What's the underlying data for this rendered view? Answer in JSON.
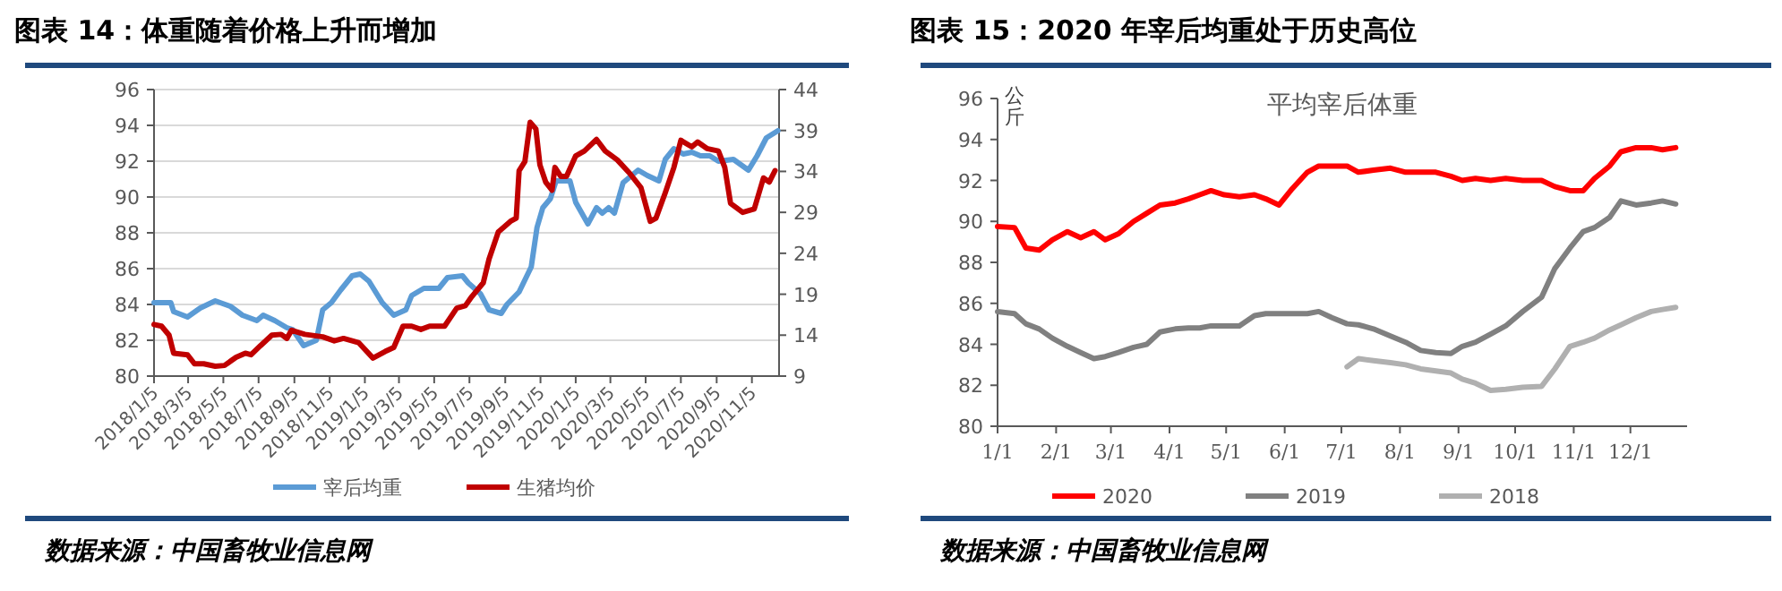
{
  "chart_data": [
    {
      "type": "line",
      "title": "图表 14：体重随着价格上升而增加",
      "annotations": [
        "数据来源：中国畜牧业信息网"
      ],
      "legend": "bottom",
      "grid": "y",
      "xlim": [
        "2018-01-05",
        "2020-12-22"
      ],
      "xticks": [
        {
          "value": "2018-01-05",
          "label": "2018/1/5"
        },
        {
          "value": "2018-03-05",
          "label": "2018/3/5"
        },
        {
          "value": "2018-05-05",
          "label": "2018/5/5"
        },
        {
          "value": "2018-07-05",
          "label": "2018/7/5"
        },
        {
          "value": "2018-09-05",
          "label": "2018/9/5"
        },
        {
          "value": "2018-11-05",
          "label": "2018/11/5"
        },
        {
          "value": "2019-01-05",
          "label": "2019/1/5"
        },
        {
          "value": "2019-03-05",
          "label": "2019/3/5"
        },
        {
          "value": "2019-05-05",
          "label": "2019/5/5"
        },
        {
          "value": "2019-07-05",
          "label": "2019/7/5"
        },
        {
          "value": "2019-09-05",
          "label": "2019/9/5"
        },
        {
          "value": "2019-11-05",
          "label": "2019/11/5"
        },
        {
          "value": "2020-01-05",
          "label": "2020/1/5"
        },
        {
          "value": "2020-03-05",
          "label": "2020/3/5"
        },
        {
          "value": "2020-05-05",
          "label": "2020/5/5"
        },
        {
          "value": "2020-07-05",
          "label": "2020/7/5"
        },
        {
          "value": "2020-09-05",
          "label": "2020/9/5"
        },
        {
          "value": "2020-11-05",
          "label": "2020/11/5"
        }
      ],
      "ylim": [
        80,
        96
      ],
      "yticks": [
        80,
        82,
        84,
        86,
        88,
        90,
        92,
        94,
        96
      ],
      "y2lim": [
        9,
        44
      ],
      "y2ticks": [
        9,
        14,
        19,
        24,
        29,
        34,
        39,
        44
      ],
      "series": [
        {
          "name": "宰后均重",
          "color": "#5b9bd5",
          "x": [
            "2018-01-05",
            "2018-02-03",
            "2018-02-08",
            "2018-03-04",
            "2018-03-26",
            "2018-04-21",
            "2018-05-17",
            "2018-06-07",
            "2018-07-02",
            "2018-07-13",
            "2018-08-02",
            "2018-08-23",
            "2018-09-02",
            "2018-09-21",
            "2018-10-13",
            "2018-10-24",
            "2018-11-08",
            "2018-11-24",
            "2018-12-14",
            "2018-12-28",
            "2019-01-12",
            "2019-02-04",
            "2019-02-24",
            "2019-03-17",
            "2019-03-27",
            "2019-04-17",
            "2019-05-13",
            "2019-05-28",
            "2019-06-23",
            "2019-07-03",
            "2019-07-24",
            "2019-08-08",
            "2019-08-29",
            "2019-09-08",
            "2019-09-29",
            "2019-10-20",
            "2019-10-30",
            "2019-11-09",
            "2019-11-22",
            "2019-12-02",
            "2019-12-26",
            "2020-01-05",
            "2020-01-26",
            "2020-02-10",
            "2020-02-20",
            "2020-03-02",
            "2020-03-12",
            "2020-03-27",
            "2020-04-22",
            "2020-05-08",
            "2020-05-28",
            "2020-06-08",
            "2020-06-23",
            "2020-07-09",
            "2020-07-24",
            "2020-08-08",
            "2020-08-24",
            "2020-09-08",
            "2020-10-04",
            "2020-10-30",
            "2020-11-14",
            "2020-11-30",
            "2020-12-20"
          ],
          "values": [
            84.1,
            84.1,
            83.6,
            83.3,
            83.8,
            84.2,
            83.9,
            83.4,
            83.1,
            83.4,
            83.1,
            82.7,
            82.6,
            81.7,
            82.0,
            83.7,
            84.1,
            84.8,
            85.6,
            85.7,
            85.3,
            84.1,
            83.4,
            83.7,
            84.5,
            84.9,
            84.9,
            85.5,
            85.6,
            85.2,
            84.6,
            83.7,
            83.5,
            84.0,
            84.7,
            86.1,
            88.3,
            89.4,
            89.9,
            90.9,
            90.9,
            89.7,
            88.5,
            89.4,
            89.1,
            89.4,
            89.1,
            90.8,
            91.5,
            91.2,
            90.9,
            92.1,
            92.7,
            92.4,
            92.5,
            92.3,
            92.3,
            92.0,
            92.1,
            91.5,
            92.3,
            93.3,
            93.7
          ]
        },
        {
          "name": "生猪均价",
          "color": "#c00000",
          "axis": "y2",
          "x": [
            "2018-01-05",
            "2018-01-18",
            "2018-01-31",
            "2018-02-08",
            "2018-03-04",
            "2018-03-16",
            "2018-04-01",
            "2018-04-21",
            "2018-05-07",
            "2018-05-27",
            "2018-06-12",
            "2018-06-22",
            "2018-07-08",
            "2018-07-28",
            "2018-08-13",
            "2018-08-23",
            "2018-08-31",
            "2018-09-23",
            "2018-10-24",
            "2018-11-13",
            "2018-11-29",
            "2018-12-25",
            "2019-01-19",
            "2019-02-09",
            "2019-02-24",
            "2019-03-12",
            "2019-03-27",
            "2019-04-12",
            "2019-04-27",
            "2019-05-23",
            "2019-06-13",
            "2019-06-28",
            "2019-07-09",
            "2019-07-29",
            "2019-08-08",
            "2019-08-24",
            "2019-09-14",
            "2019-09-24",
            "2019-09-29",
            "2019-10-09",
            "2019-10-18",
            "2019-10-28",
            "2019-11-04",
            "2019-11-14",
            "2019-11-25",
            "2019-11-30",
            "2019-12-10",
            "2019-12-20",
            "2020-01-05",
            "2020-01-20",
            "2020-02-10",
            "2020-02-25",
            "2020-03-17",
            "2020-04-07",
            "2020-04-27",
            "2020-05-13",
            "2020-05-23",
            "2020-06-08",
            "2020-06-23",
            "2020-07-05",
            "2020-07-24",
            "2020-08-03",
            "2020-08-19",
            "2020-09-08",
            "2020-09-19",
            "2020-09-29",
            "2020-10-20",
            "2020-11-09",
            "2020-11-25",
            "2020-12-05",
            "2020-12-15"
          ],
          "values": [
            15.3,
            15.1,
            14.0,
            11.8,
            11.6,
            10.5,
            10.5,
            10.2,
            10.3,
            11.3,
            11.8,
            11.6,
            12.7,
            14.0,
            14.1,
            13.6,
            14.6,
            14.1,
            13.8,
            13.3,
            13.6,
            13.1,
            11.2,
            12.0,
            12.5,
            15.1,
            15.1,
            14.7,
            15.1,
            15.1,
            17.3,
            17.6,
            18.7,
            20.4,
            23.3,
            26.6,
            27.9,
            28.3,
            34.1,
            35.2,
            40.0,
            39.2,
            34.8,
            32.7,
            31.7,
            34.5,
            33.4,
            33.4,
            35.9,
            36.5,
            37.9,
            36.5,
            35.4,
            33.8,
            32.0,
            27.9,
            28.3,
            31.4,
            34.5,
            37.8,
            37.0,
            37.6,
            36.8,
            36.5,
            34.5,
            30.1,
            29.0,
            29.4,
            33.2,
            32.7,
            34.1
          ]
        }
      ]
    },
    {
      "type": "line",
      "title": "图表 15：2020 年宰后均重处于历史高位",
      "subtitle": "平均宰后体重",
      "ylabel": "公斤",
      "annotations": [
        "数据来源：中国畜牧业信息网"
      ],
      "legend": "bottom",
      "xlim": [
        "--01-01",
        "--12-31"
      ],
      "xticks": [
        {
          "value": "--01-01",
          "label": "1/1"
        },
        {
          "value": "--02-01",
          "label": "2/1"
        },
        {
          "value": "--03-01",
          "label": "3/1"
        },
        {
          "value": "--04-01",
          "label": "4/1"
        },
        {
          "value": "--05-01",
          "label": "5/1"
        },
        {
          "value": "--06-01",
          "label": "6/1"
        },
        {
          "value": "--07-01",
          "label": "7/1"
        },
        {
          "value": "--08-01",
          "label": "8/1"
        },
        {
          "value": "--09-01",
          "label": "9/1"
        },
        {
          "value": "--10-01",
          "label": "10/1"
        },
        {
          "value": "--11-01",
          "label": "11/1"
        },
        {
          "value": "--12-01",
          "label": "12/1"
        }
      ],
      "ylim": [
        80,
        96
      ],
      "yticks": [
        80,
        82,
        84,
        86,
        88,
        90,
        92,
        94,
        96
      ],
      "x": [
        "--01-01",
        "--01-10",
        "--01-16",
        "--01-23",
        "--01-30",
        "--02-07",
        "--02-14",
        "--02-21",
        "--02-27",
        "--03-05",
        "--03-13",
        "--03-20",
        "--03-27",
        "--04-04",
        "--04-11",
        "--04-17",
        "--04-23",
        "--04-30",
        "--05-08",
        "--05-16",
        "--05-22",
        "--05-29",
        "--06-05",
        "--06-13",
        "--06-19",
        "--06-26",
        "--07-04",
        "--07-10",
        "--07-18",
        "--07-27",
        "--08-04",
        "--08-12",
        "--08-20",
        "--08-28",
        "--09-03",
        "--09-10",
        "--09-18",
        "--09-26",
        "--10-05",
        "--10-15",
        "--10-22",
        "--10-30",
        "--11-06",
        "--11-12",
        "--11-20",
        "--11-26",
        "--12-04",
        "--12-12",
        "--12-18",
        "--12-25"
      ],
      "series": [
        {
          "name": "2020",
          "color": "#ff0000",
          "values": [
            89.75,
            89.7,
            88.7,
            88.6,
            89.1,
            89.5,
            89.2,
            89.5,
            89.1,
            89.4,
            90.0,
            90.4,
            90.8,
            90.9,
            91.1,
            91.3,
            91.5,
            91.3,
            91.2,
            91.3,
            91.1,
            90.8,
            91.6,
            92.4,
            92.7,
            92.7,
            92.7,
            92.4,
            92.5,
            92.6,
            92.4,
            92.4,
            92.4,
            92.2,
            92.0,
            92.1,
            92.0,
            92.1,
            92.0,
            92.0,
            91.7,
            91.5,
            91.5,
            92.1,
            92.7,
            93.4,
            93.6,
            93.6,
            93.5,
            93.6
          ]
        },
        {
          "name": "2019",
          "color": "#808080",
          "values": [
            85.6,
            85.5,
            85.0,
            84.75,
            84.3,
            83.9,
            83.6,
            83.3,
            83.4,
            83.6,
            83.85,
            84.0,
            84.6,
            84.75,
            84.8,
            84.8,
            84.9,
            84.9,
            84.9,
            85.4,
            85.5,
            85.5,
            85.5,
            85.5,
            85.6,
            85.3,
            85.0,
            84.95,
            84.75,
            84.4,
            84.1,
            83.7,
            83.6,
            83.55,
            83.9,
            84.1,
            84.5,
            84.9,
            85.6,
            86.3,
            87.7,
            88.7,
            89.5,
            89.7,
            90.2,
            91.0,
            90.8,
            90.9,
            91.0,
            90.85
          ]
        },
        {
          "name": "2018",
          "color": "#b0b0b0",
          "values": [
            null,
            null,
            null,
            null,
            null,
            null,
            null,
            null,
            null,
            null,
            null,
            null,
            null,
            null,
            null,
            null,
            null,
            null,
            null,
            null,
            null,
            null,
            null,
            null,
            null,
            null,
            82.9,
            83.3,
            83.2,
            83.1,
            83.0,
            82.8,
            82.7,
            82.6,
            82.3,
            82.1,
            81.75,
            81.8,
            81.9,
            81.95,
            82.8,
            83.9,
            84.1,
            84.3,
            84.7,
            84.95,
            85.3,
            85.6,
            85.7,
            85.8
          ]
        }
      ]
    }
  ]
}
